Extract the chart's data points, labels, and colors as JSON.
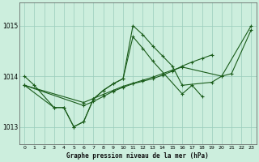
{
  "title": "Graphe pression niveau de la mer (hPa)",
  "background_color": "#cceedd",
  "grid_color": "#99ccbb",
  "line_color": "#1a5c1a",
  "xlim": [
    -0.5,
    23.5
  ],
  "ylim": [
    1012.65,
    1015.45
  ],
  "yticks": [
    1013,
    1014,
    1015
  ],
  "xticks": [
    0,
    1,
    2,
    3,
    4,
    5,
    6,
    7,
    8,
    9,
    10,
    11,
    12,
    13,
    14,
    15,
    16,
    17,
    18,
    19,
    20,
    21,
    22,
    23
  ],
  "series1_x": [
    0,
    1,
    3,
    4,
    5,
    6,
    7,
    8,
    9,
    10,
    11,
    12,
    13,
    14,
    15,
    16,
    19,
    20,
    23
  ],
  "series1_y": [
    1014.0,
    1013.82,
    1013.38,
    1013.38,
    1013.0,
    1013.1,
    1013.55,
    1013.72,
    1013.85,
    1013.95,
    1015.0,
    1014.82,
    1014.6,
    1014.4,
    1014.2,
    1013.82,
    1013.88,
    1014.0,
    1015.0
  ],
  "series2_x": [
    0,
    3,
    4,
    5,
    6,
    7,
    8,
    9,
    10,
    11,
    12,
    13,
    16,
    17,
    18
  ],
  "series2_y": [
    1013.82,
    1013.38,
    1013.38,
    1013.0,
    1013.1,
    1013.55,
    1013.72,
    1013.85,
    1013.95,
    1014.78,
    1014.55,
    1014.3,
    1013.65,
    1013.82,
    1013.6
  ],
  "series3_x": [
    0,
    6,
    7,
    8,
    9,
    10,
    11,
    12,
    13,
    14,
    15,
    16,
    17,
    18,
    19
  ],
  "series3_y": [
    1013.82,
    1013.42,
    1013.5,
    1013.6,
    1013.7,
    1013.78,
    1013.85,
    1013.9,
    1013.95,
    1014.02,
    1014.1,
    1014.2,
    1014.28,
    1014.35,
    1014.42
  ],
  "series4_x": [
    0,
    6,
    7,
    8,
    9,
    10,
    11,
    12,
    13,
    14,
    15,
    16,
    20,
    21,
    23
  ],
  "series4_y": [
    1013.82,
    1013.48,
    1013.56,
    1013.64,
    1013.72,
    1013.8,
    1013.86,
    1013.92,
    1013.98,
    1014.05,
    1014.12,
    1014.18,
    1014.0,
    1014.05,
    1014.92
  ]
}
